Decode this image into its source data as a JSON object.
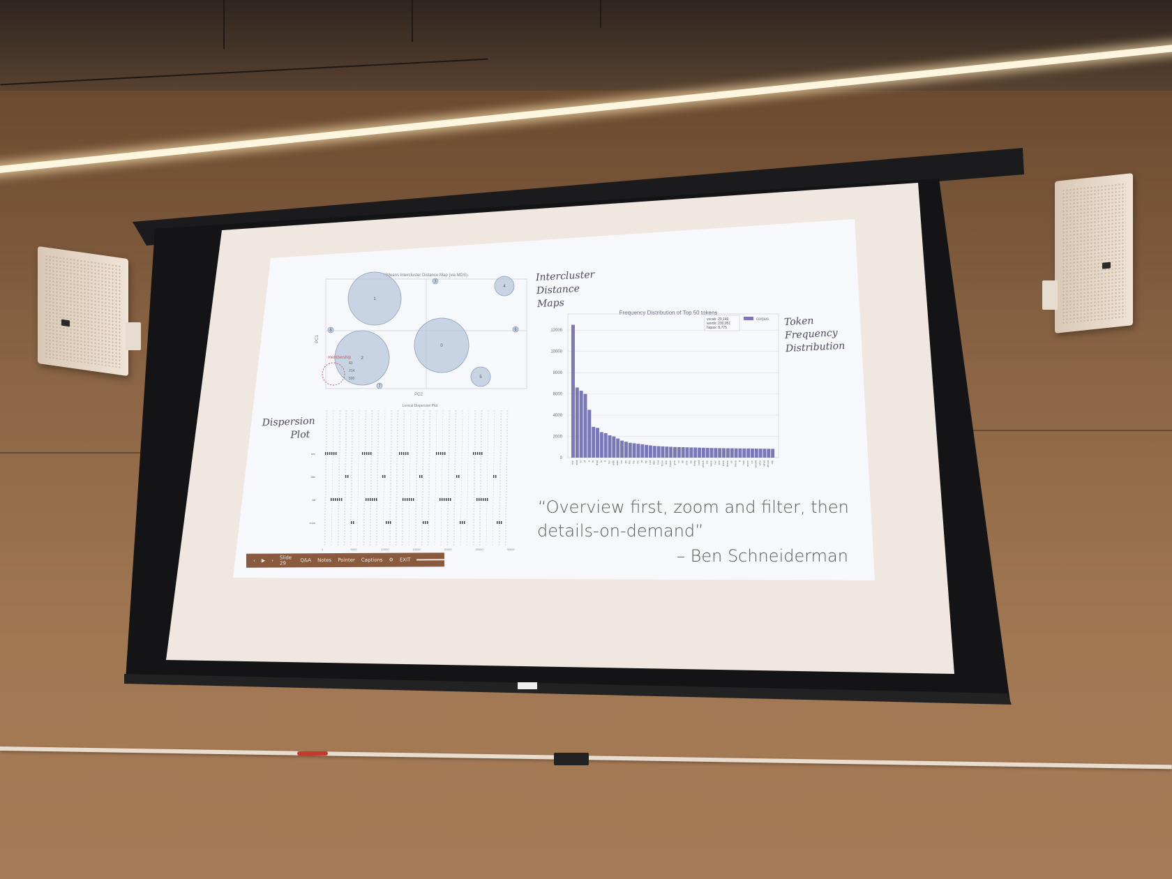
{
  "slide": {
    "label_intercluster": [
      "Intercluster",
      "Distance",
      "Maps"
    ],
    "label_token": [
      "Token",
      "Frequency",
      "Distribution"
    ],
    "label_dispersion": [
      "Dispersion",
      "Plot"
    ],
    "quote_line1": "“Overview first, zoom and filter, then",
    "quote_line2": "details-on-demand”",
    "quote_author": "– Ben Schneiderman"
  },
  "cluster_map": {
    "title": "KMeans Intercluster Distance Map (via MDS)",
    "xlabel": "PC2",
    "ylabel": "PC1",
    "clusters": [
      {
        "id": "1",
        "size": "large"
      },
      {
        "id": "2",
        "size": "large"
      },
      {
        "id": "0",
        "size": "large"
      },
      {
        "id": "4",
        "size": "small"
      },
      {
        "id": "5",
        "size": "small"
      },
      {
        "id": "3",
        "size": "tiny"
      },
      {
        "id": "6",
        "size": "tiny"
      },
      {
        "id": "7",
        "size": "tiny"
      },
      {
        "id": "8",
        "size": "tiny"
      }
    ],
    "legend_title": "membership",
    "legend_values": [
      "63",
      "214",
      "500"
    ]
  },
  "dispersion": {
    "title": "Lexical Dispersion Plot",
    "ticks_x": [
      "0",
      "5000",
      "10000",
      "15000",
      "20000",
      "25000",
      "30000"
    ],
    "words": [
      "sex",
      "fats",
      "fat",
      "crow"
    ]
  },
  "chart_data": {
    "type": "bar",
    "title": "Frequency Distribution of Top 50 tokens",
    "legend": {
      "label": "corpus",
      "position": "top-right",
      "color": "#7b78b8"
    },
    "annotation": [
      "vocab: 20,140",
      "words: 230,051",
      "hapax: 8,775"
    ],
    "ylim": [
      0,
      13000
    ],
    "yticks": [
      0,
      2000,
      4000,
      6000,
      8000,
      10000,
      12000
    ],
    "categories": [
      "the",
      "and",
      "to",
      "of",
      "a",
      "in",
      "that",
      "is",
      "it",
      "for",
      "with",
      "was",
      "on",
      "as",
      "his",
      "be",
      "he",
      "at",
      "by",
      "not",
      "this",
      "but",
      "from",
      "are",
      "have",
      "you",
      "or",
      "all",
      "one",
      "an",
      "they",
      "had",
      "which",
      "we",
      "were",
      "her",
      "she",
      "their",
      "there",
      "so",
      "been",
      "if",
      "has",
      "more",
      "no",
      "would",
      "who",
      "what",
      "about",
      "my"
    ],
    "values": [
      12500,
      6600,
      6300,
      6000,
      4500,
      2900,
      2800,
      2400,
      2300,
      2100,
      2000,
      1800,
      1600,
      1500,
      1400,
      1350,
      1300,
      1250,
      1200,
      1150,
      1100,
      1080,
      1060,
      1040,
      1020,
      1000,
      990,
      980,
      970,
      960,
      950,
      940,
      930,
      920,
      910,
      900,
      895,
      890,
      885,
      880,
      875,
      870,
      865,
      860,
      855,
      850,
      845,
      840,
      835,
      830
    ]
  },
  "toolbar": {
    "slide_label": "Slide 29",
    "items": [
      "Q&A",
      "Notes",
      "Pointer",
      "Captions"
    ],
    "exit": "EXIT"
  },
  "colors": {
    "wall": "#a27853",
    "screen": "#f6f7fb",
    "bar": "#7b78b8"
  }
}
